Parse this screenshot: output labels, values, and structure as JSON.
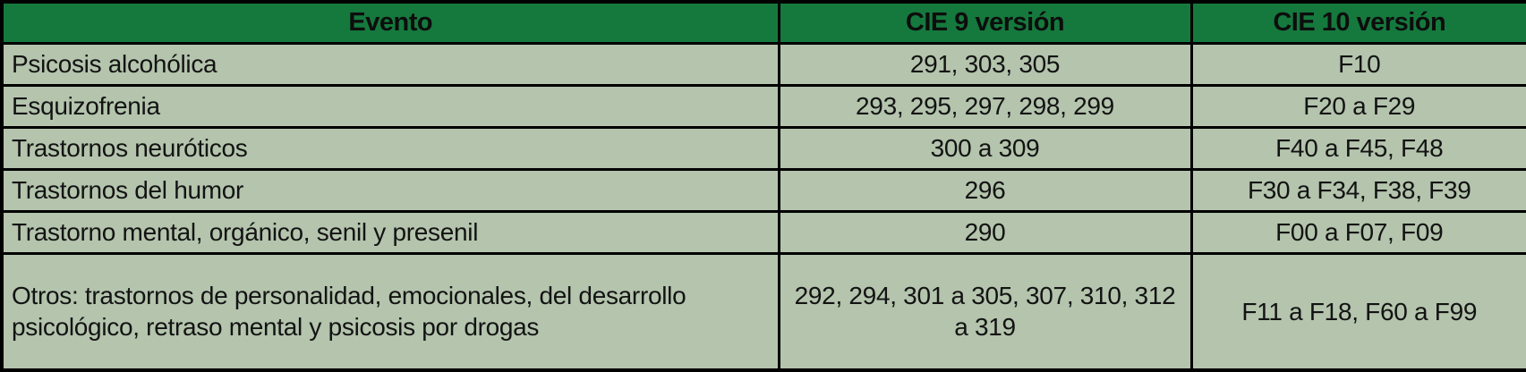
{
  "table": {
    "columns": [
      {
        "key": "evento",
        "label": "Evento"
      },
      {
        "key": "cie9",
        "label": "CIE 9 versión"
      },
      {
        "key": "cie10",
        "label": "CIE 10 versión"
      }
    ],
    "rows": [
      {
        "evento": "Psicosis alcohólica",
        "cie9": "291, 303, 305",
        "cie10": "F10"
      },
      {
        "evento": "Esquizofrenia",
        "cie9": "293, 295, 297, 298, 299",
        "cie10": "F20 a F29"
      },
      {
        "evento": "Trastornos neuróticos",
        "cie9": "300 a 309",
        "cie10": "F40 a F45, F48"
      },
      {
        "evento": "Trastornos del humor",
        "cie9": "296",
        "cie10": "F30 a F34, F38, F39"
      },
      {
        "evento": "Trastorno mental, orgánico, senil y presenil",
        "cie9": "290",
        "cie10": "F00 a F07, F09"
      },
      {
        "evento": "Otros: trastornos de personalidad, emocionales, del desarrollo psicológico, retraso mental y psicosis por drogas",
        "cie9": "292, 294, 301 a 305, 307, 310, 312 a 319",
        "cie10": "F11 a F18, F60 a F99"
      }
    ],
    "colors": {
      "header_bg": "#15793d",
      "body_bg": "#b4c4ad",
      "border": "#000000",
      "header_text": "#0d0d0d",
      "body_text": "#131313"
    }
  },
  "chart_data": {
    "type": "table",
    "title": "",
    "columns": [
      "Evento",
      "CIE 9 versión",
      "CIE 10 versión"
    ],
    "rows": [
      [
        "Psicosis alcohólica",
        "291, 303, 305",
        "F10"
      ],
      [
        "Esquizofrenia",
        "293, 295, 297, 298, 299",
        "F20 a F29"
      ],
      [
        "Trastornos neuróticos",
        "300 a 309",
        "F40 a F45, F48"
      ],
      [
        "Trastornos del humor",
        "296",
        "F30 a F34, F38, F39"
      ],
      [
        "Trastorno mental, orgánico, senil y presenil",
        "290",
        "F00 a F07, F09"
      ],
      [
        "Otros: trastornos de personalidad, emocionales, del desarrollo psicológico, retraso mental y psicosis por drogas",
        "292, 294, 301 a 305, 307, 310, 312 a 319",
        "F11 a F18, F60 a F99"
      ]
    ]
  }
}
